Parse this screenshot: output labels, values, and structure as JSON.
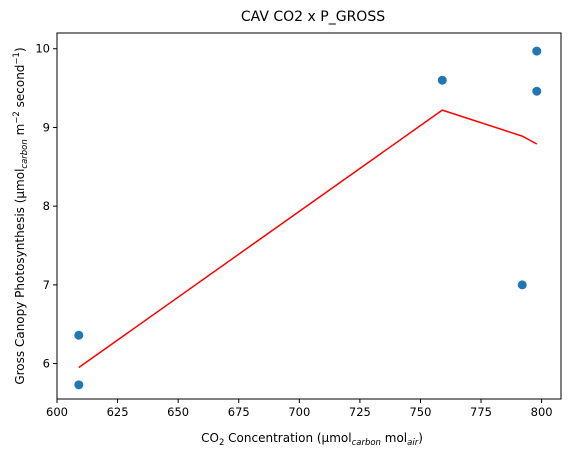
{
  "chart_data": {
    "type": "scatter",
    "title": "CAV CO2 x P_GROSS",
    "xlabel": {
      "prefix": "CO",
      "sub1": "2",
      "mid": " Concentration (µmol",
      "sub2": "carbon",
      "mid2": " mol",
      "sub3": "air",
      "suffix": ")"
    },
    "ylabel": {
      "prefix": "Gross Canopy Photosynthesis (µmol",
      "sub": "carbon",
      "mid": " m",
      "sup1": "−2",
      "mid2": " second",
      "sup2": "−1",
      "suffix": ")"
    },
    "xlim": [
      600,
      808
    ],
    "ylim": [
      5.55,
      10.2
    ],
    "xticks": [
      600,
      625,
      650,
      675,
      700,
      725,
      750,
      775,
      800
    ],
    "yticks": [
      6,
      7,
      8,
      9,
      10
    ],
    "grid": false,
    "points": [
      {
        "x": 609,
        "y": 6.36
      },
      {
        "x": 609,
        "y": 5.73
      },
      {
        "x": 759,
        "y": 9.6
      },
      {
        "x": 792,
        "y": 7.0
      },
      {
        "x": 798,
        "y": 9.97
      },
      {
        "x": 798,
        "y": 9.46
      }
    ],
    "fit_line": [
      {
        "x": 609,
        "y": 5.95
      },
      {
        "x": 759,
        "y": 9.22
      },
      {
        "x": 792,
        "y": 8.89
      },
      {
        "x": 798,
        "y": 8.79
      }
    ],
    "colors": {
      "points": "#1f77b4",
      "line": "#ff0000"
    }
  }
}
